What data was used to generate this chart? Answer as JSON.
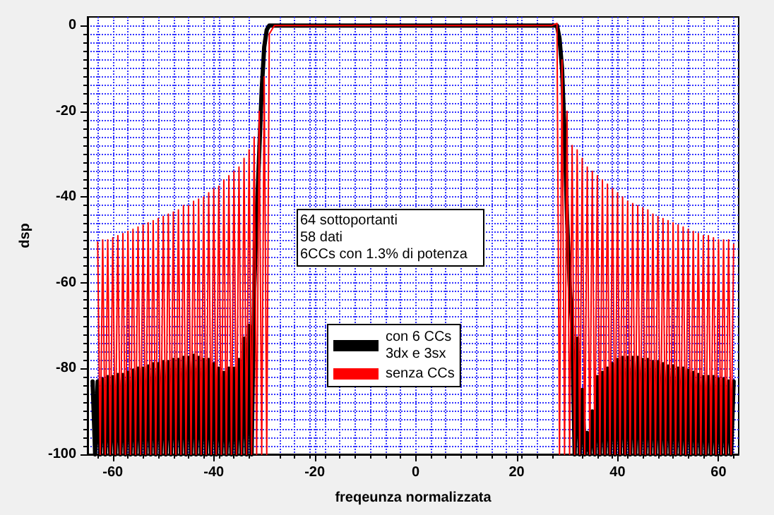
{
  "chart_data": {
    "type": "line",
    "xlabel": "freqeunza normalizzata",
    "ylabel": "dsp",
    "xlim": [
      -65,
      64
    ],
    "ylim": [
      -100,
      2
    ],
    "xticks": [
      -60,
      -40,
      -20,
      0,
      20,
      40,
      60
    ],
    "yticks": [
      -100,
      -80,
      -60,
      -40,
      -20,
      0
    ],
    "grid": true,
    "legend": "bottom",
    "marker": "none",
    "line_style": "solid",
    "annotations": [
      "64 sottoportanti",
      "58 dati",
      "6CCs con 1.3% di potenza"
    ],
    "series": [
      {
        "name": "con 6 CCs\n3dx e 3sx",
        "color": "#000000",
        "x": [
          -64,
          -63.5,
          -63,
          -62.5,
          -62,
          -61.5,
          -61,
          -60.5,
          -60,
          -59.5,
          -59,
          -58.5,
          -58,
          -57.5,
          -57,
          -56.5,
          -56,
          -55.5,
          -55,
          -54.5,
          -54,
          -53.5,
          -53,
          -52.5,
          -52,
          -51.5,
          -51,
          -50.5,
          -50,
          -49.5,
          -49,
          -48.5,
          -48,
          -47.5,
          -47,
          -46.5,
          -46,
          -45.5,
          -45,
          -44.5,
          -44,
          -43.5,
          -43,
          -42.5,
          -42,
          -41.5,
          -41,
          -40.5,
          -40,
          -39.5,
          -39,
          -38.5,
          -38,
          -37.5,
          -37,
          -36.5,
          -36,
          -35.5,
          -35,
          -34.5,
          -34,
          -33.5,
          -33,
          -32.5,
          -32,
          -31.5,
          -31,
          -30.5,
          -30,
          -29.5,
          -29,
          27,
          28,
          28.5,
          29,
          29.5,
          30,
          30.5,
          31,
          31.5,
          32,
          32.5,
          33,
          33.5,
          34,
          34.5,
          35,
          35.5,
          36,
          36.5,
          37,
          37.5,
          38,
          38.5,
          39,
          39.5,
          40,
          40.5,
          41,
          41.5,
          42,
          42.5,
          43,
          43.5,
          44,
          44.5,
          45,
          45.5,
          46,
          46.5,
          47,
          47.5,
          48,
          48.5,
          49,
          49.5,
          50,
          50.5,
          51,
          51.5,
          52,
          52.5,
          53,
          53.5,
          54,
          54.5,
          55,
          55.5,
          56,
          56.5,
          57,
          57.5,
          58,
          58.5,
          59,
          59.5,
          60,
          60.5,
          61,
          61.5,
          62,
          62.5,
          63
        ],
        "values": [
          -83,
          -100,
          -83,
          -100,
          -82.5,
          -100,
          -82,
          -100,
          -82,
          -100,
          -81.5,
          -100,
          -81.5,
          -100,
          -81,
          -100,
          -80.5,
          -100,
          -80,
          -100,
          -80,
          -100,
          -79.5,
          -100,
          -79,
          -100,
          -79,
          -100,
          -78.5,
          -100,
          -78.5,
          -100,
          -78,
          -100,
          -78,
          -100,
          -77.5,
          -100,
          -77.5,
          -100,
          -77,
          -100,
          -77.5,
          -100,
          -78,
          -100,
          -78,
          -100,
          -79,
          -100,
          -80,
          -100,
          -81,
          -100,
          -80,
          -100,
          -80,
          -100,
          -78,
          -100,
          -73,
          -100,
          -70,
          -100,
          -62,
          -45,
          -30,
          -15,
          -5,
          -1,
          0,
          0,
          0,
          -3,
          -10,
          -25,
          -45,
          -60,
          -70,
          -100,
          -73,
          -100,
          -85,
          -100,
          -95,
          -100,
          -90,
          -100,
          -82,
          -100,
          -81,
          -100,
          -80,
          -100,
          -79,
          -100,
          -78,
          -100,
          -77.5,
          -100,
          -77.5,
          -100,
          -77.5,
          -100,
          -77.5,
          -100,
          -78,
          -100,
          -78,
          -100,
          -78.5,
          -100,
          -78.5,
          -100,
          -79,
          -100,
          -79.5,
          -100,
          -79.5,
          -100,
          -80,
          -100,
          -80,
          -100,
          -80.5,
          -100,
          -81,
          -100,
          -81.5,
          -100,
          -82,
          -100,
          -82,
          -100,
          -82,
          -100,
          -82.5,
          -100,
          -82.5,
          -100,
          -83,
          -100,
          -83
        ]
      },
      {
        "name": "senza CCs",
        "color": "#ff0000",
        "x": [
          -63,
          -62.5,
          -62,
          -61.5,
          -61,
          -60.5,
          -60,
          -59.5,
          -59,
          -58.5,
          -58,
          -57.5,
          -57,
          -56.5,
          -56,
          -55.5,
          -55,
          -54.5,
          -54,
          -53.5,
          -53,
          -52.5,
          -52,
          -51.5,
          -51,
          -50.5,
          -50,
          -49.5,
          -49,
          -48.5,
          -48,
          -47.5,
          -47,
          -46.5,
          -46,
          -45.5,
          -45,
          -44.5,
          -44,
          -43.5,
          -43,
          -42.5,
          -42,
          -41.5,
          -41,
          -40.5,
          -40,
          -39.5,
          -39,
          -38.5,
          -38,
          -37.5,
          -37,
          -36.5,
          -36,
          -35.5,
          -35,
          -34.5,
          -34,
          -33.5,
          -33,
          -32.5,
          -32,
          -31.5,
          -31,
          -30.5,
          -30,
          -29.5,
          -29,
          -28,
          27,
          28,
          28.5,
          29,
          29.5,
          30,
          30.5,
          31,
          31.5,
          32,
          32.5,
          33,
          33.5,
          34,
          34.5,
          35,
          35.5,
          36,
          36.5,
          37,
          37.5,
          38,
          38.5,
          39,
          39.5,
          40,
          40.5,
          41,
          41.5,
          42,
          42.5,
          43,
          43.5,
          44,
          44.5,
          45,
          45.5,
          46,
          46.5,
          47,
          47.5,
          48,
          48.5,
          49,
          49.5,
          50,
          50.5,
          51,
          51.5,
          52,
          52.5,
          53,
          53.5,
          54,
          54.5,
          55,
          55.5,
          56,
          56.5,
          57,
          57.5,
          58,
          58.5,
          59,
          59.5,
          60,
          60.5,
          61,
          61.5,
          62,
          62.5,
          63
        ],
        "values": [
          -50.5,
          -100,
          -50,
          -100,
          -50,
          -100,
          -49.5,
          -100,
          -49,
          -100,
          -48.5,
          -100,
          -48,
          -100,
          -47.5,
          -100,
          -47,
          -100,
          -46.5,
          -100,
          -46,
          -100,
          -45.5,
          -100,
          -45,
          -100,
          -44.5,
          -100,
          -44,
          -100,
          -43.5,
          -100,
          -43,
          -100,
          -42,
          -100,
          -42,
          -100,
          -41,
          -100,
          -40.5,
          -100,
          -40,
          -100,
          -39,
          -100,
          -38,
          -100,
          -37.5,
          -100,
          -36,
          -100,
          -35,
          -100,
          -34,
          -100,
          -33,
          -100,
          -31,
          -100,
          -29,
          -100,
          -26,
          -100,
          -20,
          -100,
          -12,
          -100,
          -2,
          0,
          0,
          0.5,
          -100,
          -8,
          -100,
          -20,
          -100,
          -28,
          -100,
          -29,
          -100,
          -31,
          -100,
          -33,
          -100,
          -34,
          -100,
          -35,
          -100,
          -36,
          -100,
          -37,
          -100,
          -38,
          -100,
          -39,
          -100,
          -40,
          -100,
          -41,
          -100,
          -41.5,
          -100,
          -42,
          -100,
          -42.5,
          -100,
          -43,
          -100,
          -44,
          -100,
          -44.5,
          -100,
          -45,
          -100,
          -45.5,
          -100,
          -46,
          -100,
          -46.5,
          -100,
          -47,
          -100,
          -47.5,
          -100,
          -48,
          -100,
          -48.5,
          -100,
          -49,
          -100,
          -49,
          -100,
          -49.5,
          -100,
          -50,
          -100,
          -50,
          -100,
          -50,
          -100,
          -51
        ]
      }
    ]
  }
}
